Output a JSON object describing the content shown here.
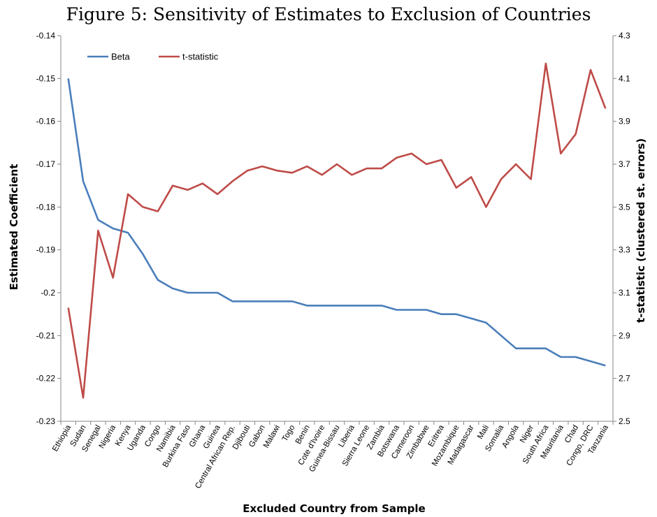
{
  "chart_data": {
    "type": "line",
    "title": "Figure 5: Sensitivity of Estimates to Exclusion of Countries",
    "xlabel": "Excluded Country from Sample",
    "ylabel_left": "Estimated Coefficient",
    "ylabel_right": "t-statistic (clustered st. errors)",
    "y_left_range": [
      -0.23,
      -0.14
    ],
    "y_left_ticks": [
      "-0.14",
      "-0.15",
      "-0.16",
      "-0.17",
      "-0.18",
      "-0.19",
      "-0.2",
      "-0.21",
      "-0.22",
      "-0.23"
    ],
    "y_right_range": [
      2.5,
      4.3
    ],
    "y_right_ticks": [
      "4.3",
      "4.1",
      "3.9",
      "3.7",
      "3.5",
      "3.3",
      "3.1",
      "2.9",
      "2.7",
      "2.5"
    ],
    "grid": false,
    "legend_position": "top-left",
    "categories": [
      "Ethiopia",
      "Sudan",
      "Senegal",
      "Nigeria",
      "Kenya",
      "Uganda",
      "Congo",
      "Namibia",
      "Burkina Faso",
      "Ghana",
      "Guinea",
      "Central African Rep.",
      "Djibouti",
      "Gabon",
      "Malawi",
      "Togo",
      "Benin",
      "Cote d'Ivoire",
      "Guinea-Bissau",
      "Liberia",
      "Sierra Leone",
      "Zambia",
      "Botswana",
      "Cameroon",
      "Zimbabwe",
      "Eritrea",
      "Mozambique",
      "Madagascar",
      "Mali",
      "Somalia",
      "Angola",
      "Niger",
      "South Africa",
      "Mauritania",
      "Chad",
      "Congo, DRC",
      "Tanzania"
    ],
    "series": [
      {
        "name": "Beta",
        "axis": "left",
        "color": "#4a7ebb",
        "values": [
          -0.15,
          -0.174,
          -0.183,
          -0.185,
          -0.186,
          -0.191,
          -0.197,
          -0.199,
          -0.2,
          -0.2,
          -0.2,
          -0.202,
          -0.202,
          -0.202,
          -0.202,
          -0.202,
          -0.203,
          -0.203,
          -0.203,
          -0.203,
          -0.203,
          -0.203,
          -0.204,
          -0.204,
          -0.204,
          -0.205,
          -0.205,
          -0.206,
          -0.207,
          -0.21,
          -0.213,
          -0.213,
          -0.213,
          -0.215,
          -0.215,
          -0.216,
          -0.217
        ]
      },
      {
        "name": "t-statistic",
        "axis": "right",
        "color": "#be4b48",
        "values": [
          3.03,
          2.61,
          3.39,
          3.17,
          3.56,
          3.5,
          3.48,
          3.6,
          3.58,
          3.61,
          3.56,
          3.62,
          3.67,
          3.69,
          3.67,
          3.66,
          3.69,
          3.65,
          3.7,
          3.65,
          3.68,
          3.68,
          3.73,
          3.75,
          3.7,
          3.72,
          3.59,
          3.64,
          3.5,
          3.63,
          3.7,
          3.63,
          4.17,
          3.75,
          3.84,
          4.14,
          3.96
        ]
      }
    ]
  }
}
